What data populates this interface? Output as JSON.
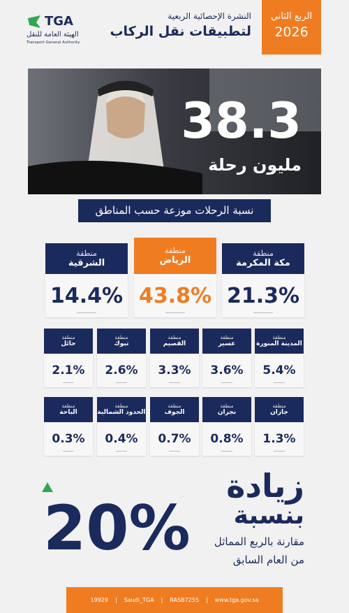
{
  "header": {
    "quarter": "الربع الثاني",
    "year": "2026",
    "title_line1": "النشرة الإحصائية الربعية",
    "title_line2": "لتطبيقات نقل الركاب",
    "logo": "TGA",
    "logo_ar": "الهيئة العامة للنقل",
    "logo_en": "Transport General Authority"
  },
  "hero": {
    "number": "38.3",
    "unit": "مليون رحلة"
  },
  "section_title": "نسبة الرحلات موزعة حسب المناطق",
  "regions": [
    [
      {
        "prefix": "منطقة",
        "name": "مكة المكرمة",
        "value": "21.3%"
      },
      {
        "prefix": "منطقة",
        "name": "الرياض",
        "value": "43.8%"
      },
      {
        "prefix": "منطقة",
        "name": "الشرقية",
        "value": "14.4%"
      }
    ],
    [
      {
        "prefix": "منطقة",
        "name": "المدينة المنورة",
        "value": "5.4%"
      },
      {
        "prefix": "منطقة",
        "name": "عسير",
        "value": "3.6%"
      },
      {
        "prefix": "منطقة",
        "name": "القصيم",
        "value": "3.3%"
      },
      {
        "prefix": "منطقة",
        "name": "تبوك",
        "value": "2.6%"
      },
      {
        "prefix": "منطقة",
        "name": "حائل",
        "value": "2.1%"
      }
    ],
    [
      {
        "prefix": "منطقة",
        "name": "جازان",
        "value": "1.3%"
      },
      {
        "prefix": "منطقة",
        "name": "نجران",
        "value": "0.8%"
      },
      {
        "prefix": "منطقة",
        "name": "الجوف",
        "value": "0.7%"
      },
      {
        "prefix": "منطقة",
        "name": "الحدود الشمالية",
        "value": "0.4%"
      },
      {
        "prefix": "منطقة",
        "name": "الباحة",
        "value": "0.3%"
      }
    ]
  ],
  "growth": {
    "word1": "زيادة",
    "word2": "بنسبة",
    "value": "20%",
    "note_line1": "مقارنة بالربع المماثل",
    "note_line2": "من العام السابق"
  },
  "footer": {
    "phone": "19929",
    "social": "Saudi_TGA",
    "code": "RASB7255",
    "website": "www.tga.gov.sa"
  }
}
